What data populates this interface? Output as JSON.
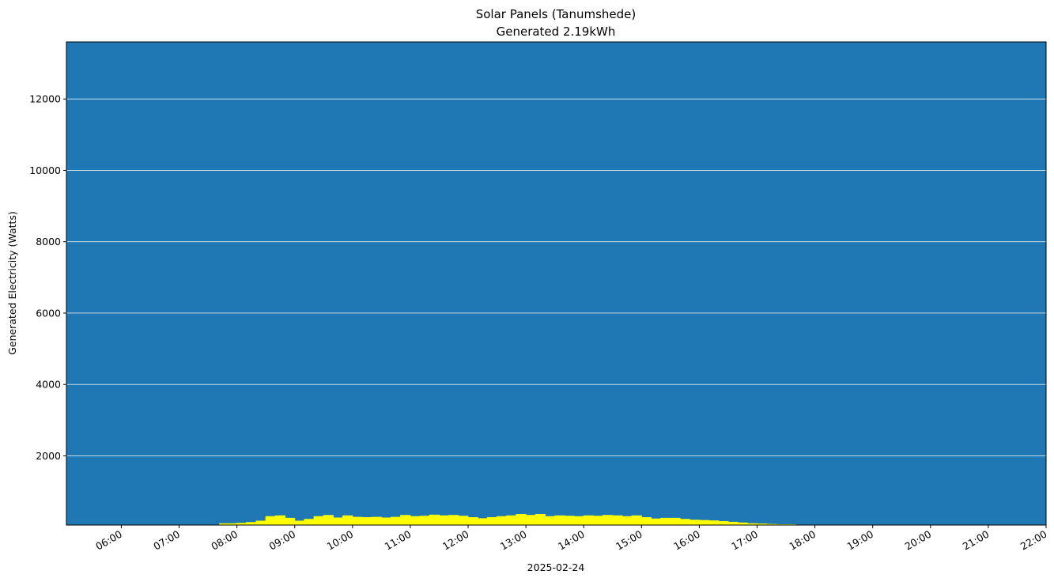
{
  "chart_data": {
    "type": "area",
    "title": "Solar Panels (Tanumshede)",
    "subtitle": "Generated 2.19kWh",
    "xlabel": "2025-02-24",
    "ylabel": "Generated Electricity (Watts)",
    "x_range": [
      "05:03",
      "22:00"
    ],
    "ylim": [
      60,
      13600
    ],
    "yticks": [
      2000,
      4000,
      6000,
      8000,
      10000,
      12000
    ],
    "xticks": [
      "06:00",
      "07:00",
      "08:00",
      "09:00",
      "10:00",
      "11:00",
      "12:00",
      "13:00",
      "14:00",
      "15:00",
      "16:00",
      "17:00",
      "18:00",
      "19:00",
      "20:00",
      "21:00",
      "22:00"
    ],
    "grid": "horizontal",
    "colors": {
      "background": "#1f77b4",
      "fill": "#ffff00",
      "grid": "#ffffff"
    },
    "series": [
      {
        "x": [
          "07:42",
          "07:50",
          "08:00",
          "08:10",
          "08:20",
          "08:30",
          "08:40",
          "08:50",
          "09:00",
          "09:10",
          "09:20",
          "09:30",
          "09:40",
          "09:50",
          "10:00",
          "10:10",
          "10:20",
          "10:30",
          "10:40",
          "10:50",
          "11:00",
          "11:10",
          "11:20",
          "11:30",
          "11:40",
          "11:50",
          "12:00",
          "12:10",
          "12:20",
          "12:30",
          "12:40",
          "12:50",
          "13:00",
          "13:10",
          "13:20",
          "13:30",
          "13:40",
          "13:50",
          "14:00",
          "14:10",
          "14:20",
          "14:30",
          "14:40",
          "14:50",
          "15:00",
          "15:10",
          "15:20",
          "15:30",
          "15:40",
          "15:50",
          "16:00",
          "16:10",
          "16:20",
          "16:30",
          "16:40",
          "16:50",
          "17:00",
          "17:10",
          "17:20",
          "17:30",
          "17:40",
          "17:50",
          "17:58"
        ],
        "values": [
          100,
          100,
          110,
          130,
          170,
          300,
          320,
          250,
          170,
          220,
          300,
          330,
          260,
          320,
          280,
          270,
          280,
          260,
          280,
          330,
          300,
          310,
          340,
          320,
          330,
          310,
          270,
          240,
          270,
          300,
          320,
          360,
          330,
          360,
          300,
          320,
          310,
          300,
          320,
          310,
          330,
          320,
          300,
          320,
          270,
          230,
          250,
          250,
          220,
          200,
          190,
          180,
          160,
          140,
          120,
          100,
          90,
          80,
          70,
          70,
          60,
          60,
          60
        ]
      }
    ]
  }
}
